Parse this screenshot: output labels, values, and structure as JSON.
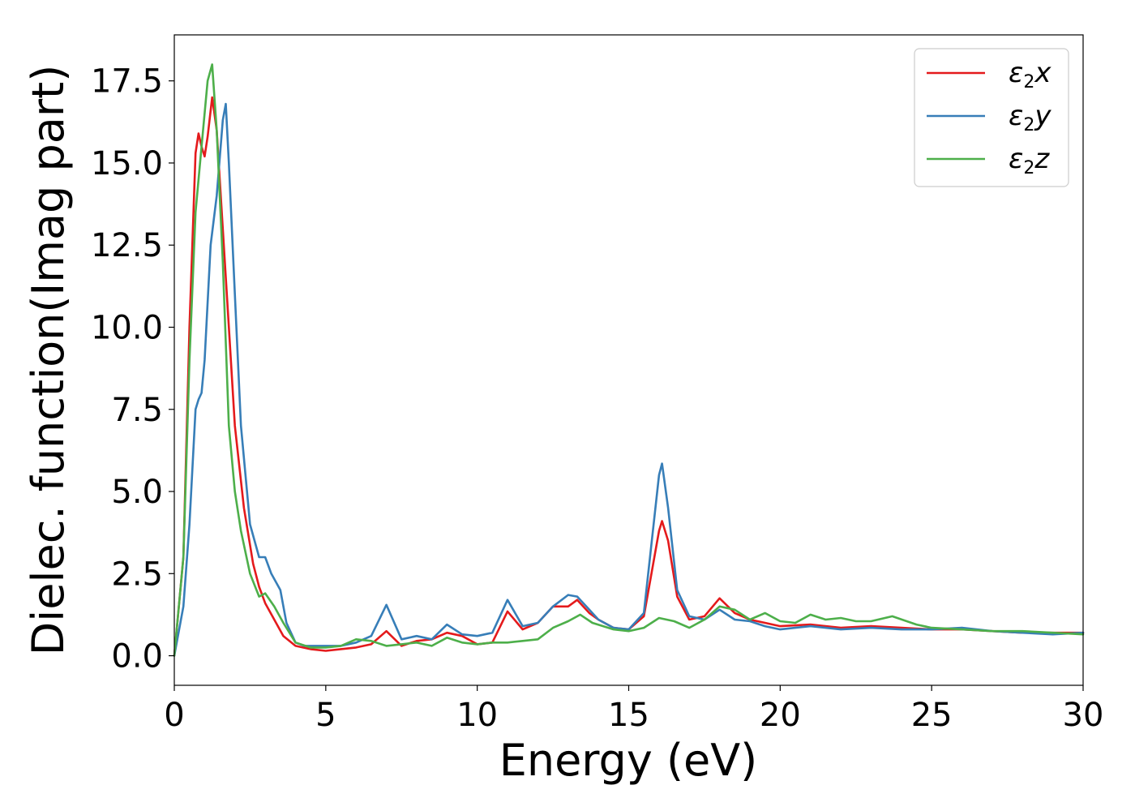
{
  "chart_data": {
    "type": "line",
    "title": "",
    "xlabel": "Energy (eV)",
    "ylabel": "Dielec. function(Imag part)",
    "xlim": [
      0,
      30
    ],
    "ylim": [
      -0.9,
      18.9
    ],
    "xticks": [
      0,
      5,
      10,
      15,
      20,
      25,
      30
    ],
    "xtick_labels": [
      "0",
      "5",
      "10",
      "15",
      "20",
      "25",
      "30"
    ],
    "yticks": [
      0.0,
      2.5,
      5.0,
      7.5,
      10.0,
      12.5,
      15.0,
      17.5
    ],
    "ytick_labels": [
      "0.0",
      "2.5",
      "5.0",
      "7.5",
      "10.0",
      "12.5",
      "15.0",
      "17.5"
    ],
    "grid": false,
    "legend_position": "top-right",
    "series": [
      {
        "name": "ε2x",
        "legend_symbol": "ε",
        "legend_sub": "2",
        "legend_var": "x",
        "color": "#e41a1c",
        "x": [
          0,
          0.3,
          0.5,
          0.7,
          0.8,
          0.9,
          1.0,
          1.1,
          1.25,
          1.4,
          1.6,
          1.8,
          2.0,
          2.3,
          2.6,
          2.8,
          3.0,
          3.3,
          3.6,
          4.0,
          4.5,
          5.0,
          5.5,
          6.0,
          6.5,
          7.0,
          7.5,
          8.0,
          8.5,
          9.0,
          9.5,
          10.0,
          10.5,
          11.0,
          11.5,
          12.0,
          12.5,
          13.0,
          13.3,
          13.7,
          14.0,
          14.5,
          15.0,
          15.5,
          16.0,
          16.1,
          16.3,
          16.6,
          17.0,
          17.5,
          18.0,
          18.5,
          19.0,
          19.5,
          20.0,
          21.0,
          22.0,
          23.0,
          24.0,
          25.0,
          26.0,
          27.0,
          28.0,
          29.0,
          30.0
        ],
        "y": [
          0.0,
          3.0,
          10.0,
          15.3,
          15.9,
          15.5,
          15.2,
          15.8,
          17.0,
          16.0,
          13.0,
          10.0,
          7.0,
          4.5,
          2.8,
          2.1,
          1.6,
          1.1,
          0.6,
          0.3,
          0.2,
          0.15,
          0.2,
          0.25,
          0.35,
          0.75,
          0.3,
          0.45,
          0.5,
          0.7,
          0.6,
          0.35,
          0.4,
          1.35,
          0.8,
          1.0,
          1.5,
          1.5,
          1.7,
          1.3,
          1.1,
          0.85,
          0.8,
          1.2,
          3.8,
          4.1,
          3.5,
          1.8,
          1.1,
          1.2,
          1.75,
          1.3,
          1.1,
          1.0,
          0.9,
          0.95,
          0.85,
          0.9,
          0.85,
          0.8,
          0.8,
          0.75,
          0.7,
          0.7,
          0.7
        ]
      },
      {
        "name": "ε2y",
        "legend_symbol": "ε",
        "legend_sub": "2",
        "legend_var": "y",
        "color": "#377eb8",
        "x": [
          0,
          0.3,
          0.5,
          0.7,
          0.8,
          0.9,
          1.0,
          1.2,
          1.4,
          1.6,
          1.7,
          1.8,
          2.0,
          2.2,
          2.5,
          2.8,
          3.0,
          3.2,
          3.5,
          3.7,
          4.0,
          4.3,
          4.7,
          5.0,
          5.5,
          6.0,
          6.5,
          7.0,
          7.5,
          8.0,
          8.5,
          9.0,
          9.5,
          10.0,
          10.5,
          11.0,
          11.5,
          12.0,
          12.5,
          13.0,
          13.3,
          13.7,
          14.0,
          14.5,
          15.0,
          15.5,
          16.0,
          16.1,
          16.3,
          16.6,
          17.0,
          17.5,
          18.0,
          18.5,
          19.0,
          19.5,
          20.0,
          21.0,
          22.0,
          23.0,
          24.0,
          25.0,
          26.0,
          27.0,
          28.0,
          29.0,
          30.0
        ],
        "y": [
          0.0,
          1.5,
          4.0,
          7.5,
          7.8,
          8.0,
          9.0,
          12.5,
          14.0,
          16.3,
          16.8,
          15.0,
          11.0,
          7.0,
          4.0,
          3.0,
          3.0,
          2.5,
          2.0,
          1.0,
          0.4,
          0.3,
          0.3,
          0.3,
          0.3,
          0.4,
          0.6,
          1.55,
          0.5,
          0.6,
          0.5,
          0.95,
          0.65,
          0.6,
          0.7,
          1.7,
          0.9,
          1.0,
          1.5,
          1.85,
          1.8,
          1.4,
          1.1,
          0.85,
          0.8,
          1.3,
          5.5,
          5.85,
          4.5,
          2.0,
          1.2,
          1.1,
          1.4,
          1.1,
          1.05,
          0.9,
          0.8,
          0.9,
          0.8,
          0.85,
          0.8,
          0.8,
          0.85,
          0.75,
          0.7,
          0.65,
          0.7
        ]
      },
      {
        "name": "ε2z",
        "legend_symbol": "ε",
        "legend_sub": "2",
        "legend_var": "z",
        "color": "#4daf4a",
        "x": [
          0,
          0.3,
          0.5,
          0.7,
          0.9,
          1.1,
          1.25,
          1.4,
          1.6,
          1.8,
          2.0,
          2.2,
          2.5,
          2.8,
          3.0,
          3.3,
          3.6,
          4.0,
          4.5,
          5.0,
          5.5,
          6.0,
          6.5,
          7.0,
          7.5,
          8.0,
          8.5,
          9.0,
          9.5,
          10.0,
          10.5,
          11.0,
          11.5,
          12.0,
          12.5,
          13.0,
          13.4,
          13.8,
          14.5,
          15.0,
          15.5,
          16.0,
          16.5,
          17.0,
          17.5,
          18.0,
          18.5,
          19.0,
          19.5,
          20.0,
          20.5,
          21.0,
          21.5,
          22.0,
          22.5,
          23.0,
          23.7,
          24.5,
          25.0,
          26.0,
          27.0,
          28.0,
          29.0,
          30.0
        ],
        "y": [
          0.0,
          3.0,
          9.0,
          13.5,
          15.5,
          17.5,
          18.0,
          16.0,
          12.0,
          7.0,
          5.0,
          3.8,
          2.5,
          1.8,
          1.9,
          1.5,
          1.0,
          0.4,
          0.25,
          0.25,
          0.3,
          0.5,
          0.45,
          0.3,
          0.35,
          0.4,
          0.3,
          0.55,
          0.4,
          0.35,
          0.4,
          0.4,
          0.45,
          0.5,
          0.85,
          1.05,
          1.25,
          1.0,
          0.8,
          0.75,
          0.85,
          1.15,
          1.05,
          0.85,
          1.1,
          1.5,
          1.4,
          1.1,
          1.3,
          1.05,
          1.0,
          1.25,
          1.1,
          1.15,
          1.05,
          1.05,
          1.2,
          0.95,
          0.85,
          0.8,
          0.75,
          0.75,
          0.7,
          0.65
        ]
      }
    ]
  }
}
